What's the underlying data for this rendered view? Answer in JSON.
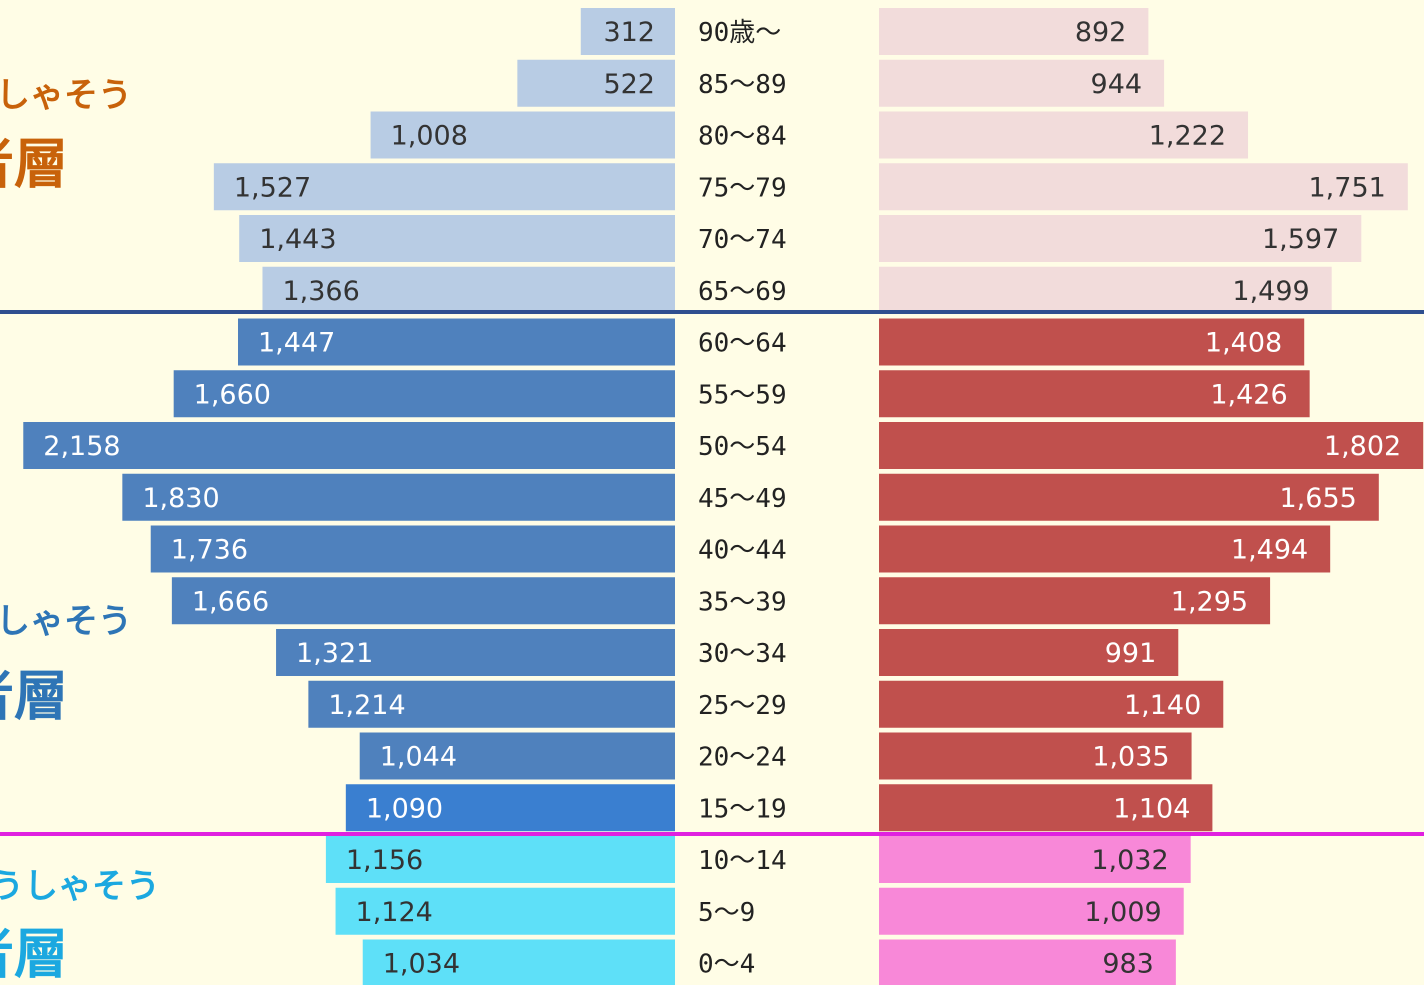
{
  "chart_data": {
    "type": "pyramid",
    "categories": [
      "90歳〜",
      "85〜89",
      "80〜84",
      "75〜79",
      "70〜74",
      "65〜69",
      "60〜64",
      "55〜59",
      "50〜54",
      "45〜49",
      "40〜44",
      "35〜39",
      "30〜34",
      "25〜29",
      "20〜24",
      "15〜19",
      "10〜14",
      "5〜9",
      "0〜4"
    ],
    "series": [
      {
        "values": [
          312,
          522,
          1008,
          1527,
          1443,
          1366,
          1447,
          1660,
          2158,
          1830,
          1736,
          1666,
          1321,
          1214,
          1044,
          1090,
          1156,
          1124,
          1034
        ],
        "value_labels": [
          "312",
          "522",
          "1,008",
          "1,527",
          "1,443",
          "1,366",
          "1,447",
          "1,660",
          "2,158",
          "1,830",
          "1,736",
          "1,666",
          "1,321",
          "1,214",
          "1,044",
          "1,090",
          "1,156",
          "1,124",
          "1,034"
        ],
        "colors": [
          "#b8cce4",
          "#b8cce4",
          "#b8cce4",
          "#b8cce4",
          "#b8cce4",
          "#b8cce4",
          "#4f81bd",
          "#4f81bd",
          "#4f81bd",
          "#4f81bd",
          "#4f81bd",
          "#4f81bd",
          "#4f81bd",
          "#4f81bd",
          "#4f81bd",
          "#3a7fd0",
          "#5ee0f8",
          "#5ee0f8",
          "#5ee0f8"
        ]
      },
      {
        "values": [
          892,
          944,
          1222,
          1751,
          1597,
          1499,
          1408,
          1426,
          1802,
          1655,
          1494,
          1295,
          991,
          1140,
          1035,
          1104,
          1032,
          1009,
          983
        ],
        "value_labels": [
          "892",
          "944",
          "1,222",
          "1,751",
          "1,597",
          "1,499",
          "1,408",
          "1,426",
          "1,802",
          "1,655",
          "1,494",
          "1,295",
          "991",
          "1,140",
          "1,035",
          "1,104",
          "1,032",
          "1,009",
          "983"
        ],
        "colors": [
          "#f2dcdb",
          "#f2dcdb",
          "#f2dcdb",
          "#f2dcdb",
          "#f2dcdb",
          "#f2dcdb",
          "#c0504d",
          "#c0504d",
          "#c0504d",
          "#c0504d",
          "#c0504d",
          "#c0504d",
          "#c0504d",
          "#c0504d",
          "#c0504d",
          "#c0504d",
          "#f888d8",
          "#f888d8",
          "#f888d8"
        ]
      }
    ],
    "annotations": [
      {
        "text": "しゃそう",
        "color": "#c8620a"
      },
      {
        "text": "者層",
        "color": "#c8620a"
      },
      {
        "text": "しゃそう",
        "color": "#2e75b6"
      },
      {
        "text": "者層",
        "color": "#2e75b6"
      },
      {
        "text": "うしゃそう",
        "color": "#1ba8e0"
      },
      {
        "text": "者層",
        "color": "#1ba8e0"
      }
    ],
    "dividers": [
      {
        "color": "#2f4f8f"
      },
      {
        "color": "#e020e0"
      }
    ]
  }
}
